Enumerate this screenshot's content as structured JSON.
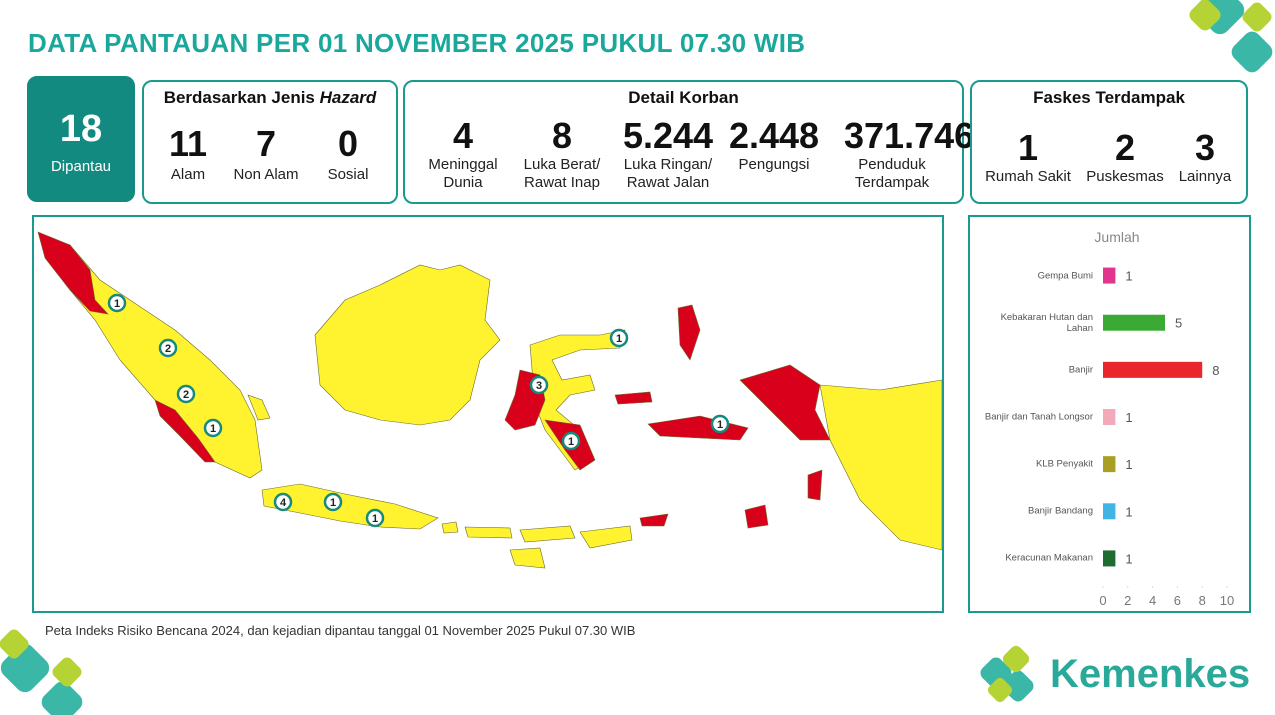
{
  "header": {
    "title": "DATA PANTAUAN PER 01 NOVEMBER 2025 PUKUL 07.30 WIB"
  },
  "monitored": {
    "value": 18,
    "label": "Dipantau"
  },
  "hazard": {
    "title_prefix": "Berdasarkan Jenis",
    "title_emphasis": "Hazard",
    "items": [
      {
        "value": 11,
        "label": "Alam"
      },
      {
        "value": 7,
        "label": "Non Alam"
      },
      {
        "value": 0,
        "label": "Sosial"
      }
    ]
  },
  "casualties": {
    "title": "Detail Korban",
    "items": [
      {
        "value": 4,
        "label": "Meninggal Dunia"
      },
      {
        "value": 8,
        "label": "Luka Berat/ Rawat Inap"
      },
      {
        "value": "5.244",
        "label": "Luka Ringan/ Rawat Jalan"
      },
      {
        "value": "2.448",
        "label": "Pengungsi"
      },
      {
        "value": "371.746",
        "label": "Penduduk Terdampak"
      }
    ]
  },
  "facilities": {
    "title": "Faskes Terdampak",
    "items": [
      {
        "value": 1,
        "label": "Rumah Sakit"
      },
      {
        "value": 2,
        "label": "Puskesmas"
      },
      {
        "value": 3,
        "label": "Lainnya"
      }
    ]
  },
  "map": {
    "markers": [
      1,
      2,
      2,
      1,
      4,
      1,
      1,
      3,
      1,
      1,
      1
    ],
    "caption": "Peta Indeks Risiko Bencana 2024, dan kejadian dipantau tanggal 01 November 2025 Pukul 07.30 WIB"
  },
  "chart_data": {
    "type": "bar",
    "horizontal": true,
    "x_label": "Jumlah",
    "categories": [
      "Gempa Bumi",
      "Kebakaran Hutan dan Lahan",
      "Banjir",
      "Banjir dan Tanah Longsor",
      "KLB Penyakit",
      "Banjir Bandang",
      "Keracunan Makanan"
    ],
    "values": [
      1,
      5,
      8,
      1,
      1,
      1,
      1
    ],
    "colors": [
      "#e2368e",
      "#3aaa35",
      "#e8262b",
      "#f2a9b8",
      "#a9a023",
      "#3fb4e5",
      "#1f6b30"
    ],
    "xlim": [
      0,
      10
    ],
    "xticks": [
      0,
      2,
      4,
      6,
      8,
      10
    ]
  },
  "logo": {
    "text": "Kemenkes"
  }
}
